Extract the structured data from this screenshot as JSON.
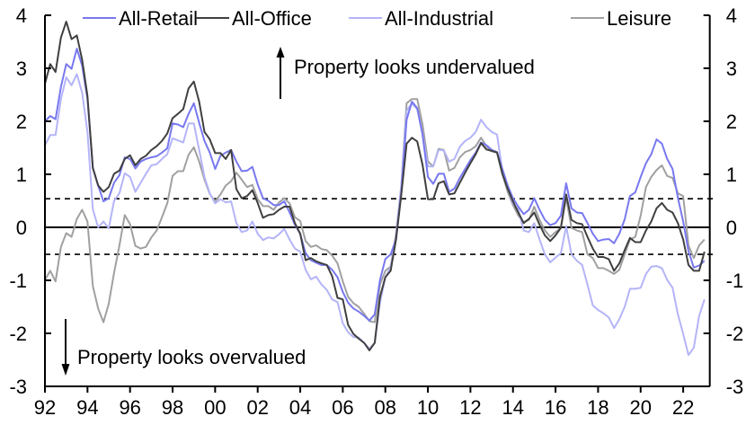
{
  "chart_data": {
    "type": "line",
    "title": "",
    "xlabel": "",
    "ylabel": "",
    "ylim": [
      -3,
      4
    ],
    "xlim": [
      1992,
      2023.25
    ],
    "grid": false,
    "legend_position": "top",
    "y_ticks": [
      "4",
      "3",
      "2",
      "1",
      "0",
      "-1",
      "-2",
      "-3"
    ],
    "y_tick_values": [
      4,
      3,
      2,
      1,
      0,
      -1,
      -2,
      -3
    ],
    "x_ticks": [
      "92",
      "94",
      "96",
      "98",
      "00",
      "02",
      "04",
      "06",
      "08",
      "10",
      "12",
      "14",
      "16",
      "18",
      "20",
      "22"
    ],
    "x_tick_values": [
      1992,
      1994,
      1996,
      1998,
      2000,
      2002,
      2004,
      2006,
      2008,
      2010,
      2012,
      2014,
      2016,
      2018,
      2020,
      2022
    ],
    "reference_lines": {
      "zero": 0,
      "upper_dashed": 0.54,
      "lower_dashed": -0.51
    },
    "annotations": {
      "undervalued": "Property looks undervalued",
      "overvalued": "Property looks overvalued"
    },
    "x": [
      1992,
      1992.25,
      1992.5,
      1992.75,
      1993,
      1993.25,
      1993.5,
      1993.75,
      1994,
      1994.25,
      1994.5,
      1994.75,
      1995,
      1995.25,
      1995.5,
      1995.75,
      1996,
      1996.25,
      1996.5,
      1996.75,
      1997,
      1997.25,
      1997.5,
      1997.75,
      1998,
      1998.25,
      1998.5,
      1998.75,
      1999,
      1999.25,
      1999.5,
      1999.75,
      2000,
      2000.25,
      2000.5,
      2000.75,
      2001,
      2001.25,
      2001.5,
      2001.75,
      2002,
      2002.25,
      2002.5,
      2002.75,
      2003,
      2003.25,
      2003.5,
      2003.75,
      2004,
      2004.25,
      2004.5,
      2004.75,
      2005,
      2005.25,
      2005.5,
      2005.75,
      2006,
      2006.25,
      2006.5,
      2006.75,
      2007,
      2007.25,
      2007.5,
      2007.75,
      2008,
      2008.25,
      2008.5,
      2008.75,
      2009,
      2009.25,
      2009.5,
      2009.75,
      2010,
      2010.25,
      2010.5,
      2010.75,
      2011,
      2011.25,
      2011.5,
      2011.75,
      2012,
      2012.25,
      2012.5,
      2012.75,
      2013,
      2013.25,
      2013.5,
      2013.75,
      2014,
      2014.25,
      2014.5,
      2014.75,
      2015,
      2015.25,
      2015.5,
      2015.75,
      2016,
      2016.25,
      2016.5,
      2016.75,
      2017,
      2017.25,
      2017.5,
      2017.75,
      2018,
      2018.25,
      2018.5,
      2018.75,
      2019,
      2019.25,
      2019.5,
      2019.75,
      2020,
      2020.25,
      2020.5,
      2020.75,
      2021,
      2021.25,
      2021.5,
      2021.75,
      2022,
      2022.25,
      2022.5,
      2022.75,
      2023
    ],
    "series": [
      {
        "name": "All-Retail",
        "color": "#7878f0",
        "values": [
          2.0,
          2.1,
          2.04,
          2.65,
          3.08,
          2.99,
          3.37,
          3.05,
          2.42,
          1.12,
          0.79,
          0.49,
          0.55,
          0.84,
          0.98,
          1.32,
          1.29,
          1.11,
          1.24,
          1.29,
          1.32,
          1.34,
          1.41,
          1.49,
          1.96,
          1.94,
          1.89,
          2.14,
          2.34,
          1.97,
          1.63,
          1.41,
          1.1,
          1.35,
          1.41,
          1.46,
          1.24,
          1.06,
          1.07,
          1.14,
          0.81,
          0.55,
          0.5,
          0.42,
          0.42,
          0.49,
          0.28,
          0.05,
          -0.12,
          -0.49,
          -0.62,
          -0.67,
          -0.71,
          -0.71,
          -0.8,
          -0.94,
          -1.22,
          -1.42,
          -1.53,
          -1.59,
          -1.67,
          -1.76,
          -1.64,
          -0.99,
          -0.6,
          -0.51,
          -0.23,
          0.67,
          2.03,
          2.37,
          2.25,
          1.75,
          0.95,
          0.82,
          1.01,
          1.01,
          0.67,
          0.73,
          0.93,
          1.1,
          1.27,
          1.41,
          1.6,
          1.55,
          1.46,
          1.42,
          1.1,
          0.79,
          0.55,
          0.39,
          0.25,
          0.33,
          0.55,
          0.33,
          0.14,
          0.04,
          0.08,
          0.22,
          0.83,
          0.36,
          0.28,
          0.27,
          0.08,
          -0.12,
          -0.26,
          -0.23,
          -0.22,
          -0.3,
          -0.12,
          0.15,
          0.59,
          0.66,
          0.95,
          1.21,
          1.38,
          1.66,
          1.58,
          1.29,
          1.1,
          0.56,
          0.11,
          -0.45,
          -0.76,
          -0.72,
          -0.63
        ]
      },
      {
        "name": "All-Office",
        "color": "#404040",
        "values": [
          2.71,
          3.08,
          2.93,
          3.58,
          3.88,
          3.55,
          3.62,
          3.16,
          2.48,
          1.12,
          0.79,
          0.67,
          0.76,
          1.01,
          1.07,
          1.29,
          1.36,
          1.17,
          1.29,
          1.35,
          1.46,
          1.53,
          1.63,
          1.77,
          2.06,
          2.14,
          2.23,
          2.62,
          2.75,
          2.37,
          1.8,
          1.66,
          1.4,
          1.4,
          1.29,
          1.46,
          0.72,
          0.55,
          0.59,
          0.7,
          0.46,
          0.18,
          0.23,
          0.25,
          0.33,
          0.39,
          0.39,
          0.08,
          -0.12,
          -0.62,
          -0.58,
          -0.64,
          -0.68,
          -0.71,
          -0.92,
          -1.33,
          -1.36,
          -1.84,
          -2.01,
          -2.1,
          -2.18,
          -2.32,
          -2.18,
          -1.31,
          -0.94,
          -0.82,
          -0.23,
          0.62,
          1.58,
          1.69,
          1.62,
          1.18,
          0.53,
          0.53,
          0.83,
          0.87,
          0.62,
          0.64,
          0.84,
          1.03,
          1.21,
          1.38,
          1.59,
          1.47,
          1.44,
          1.41,
          1.01,
          0.73,
          0.49,
          0.28,
          0.08,
          0.16,
          0.28,
          0.05,
          -0.15,
          -0.26,
          -0.15,
          -0.01,
          0.62,
          0.14,
          0.08,
          0.06,
          -0.18,
          -0.4,
          -0.56,
          -0.56,
          -0.6,
          -0.82,
          -0.68,
          -0.43,
          -0.2,
          -0.28,
          -0.28,
          -0.06,
          0.11,
          0.36,
          0.46,
          0.33,
          0.28,
          0.08,
          -0.23,
          -0.71,
          -0.82,
          -0.82,
          -0.46
        ]
      },
      {
        "name": "All-Industrial",
        "color": "#b4b4f8",
        "values": [
          1.55,
          1.74,
          1.74,
          2.42,
          2.83,
          2.68,
          2.89,
          2.54,
          1.8,
          0.34,
          0.0,
          0.11,
          -0.02,
          0.5,
          0.64,
          1.02,
          0.95,
          0.67,
          0.84,
          1.01,
          1.17,
          1.19,
          1.29,
          1.38,
          1.68,
          1.64,
          1.6,
          1.96,
          1.96,
          1.46,
          0.95,
          0.64,
          0.45,
          0.53,
          0.47,
          0.49,
          0.08,
          -0.09,
          -0.06,
          0.11,
          -0.12,
          -0.24,
          -0.19,
          -0.21,
          -0.13,
          -0.03,
          -0.23,
          -0.4,
          -0.46,
          -0.8,
          -0.98,
          -0.93,
          -1.08,
          -1.18,
          -1.36,
          -1.41,
          -1.81,
          -1.98,
          -2.07,
          -2.08,
          -2.18,
          -2.29,
          -2.18,
          -1.42,
          -0.94,
          -0.76,
          -0.18,
          0.79,
          2.2,
          2.34,
          2.23,
          1.77,
          1.15,
          1.15,
          1.46,
          1.45,
          1.24,
          1.29,
          1.52,
          1.63,
          1.69,
          1.8,
          2.03,
          1.89,
          1.8,
          1.75,
          1.07,
          0.73,
          0.45,
          0.33,
          -0.06,
          -0.09,
          0.08,
          -0.23,
          -0.51,
          -0.66,
          -0.57,
          -0.49,
          0.02,
          -0.51,
          -0.63,
          -0.71,
          -1.08,
          -1.47,
          -1.56,
          -1.62,
          -1.7,
          -1.9,
          -1.73,
          -1.5,
          -1.16,
          -1.16,
          -1.14,
          -0.88,
          -0.74,
          -0.73,
          -0.77,
          -0.99,
          -1.14,
          -1.64,
          -2.01,
          -2.41,
          -2.27,
          -1.67,
          -1.36
        ]
      },
      {
        "name": "Leisure",
        "color": "#a0a0a0",
        "values": [
          -0.99,
          -0.82,
          -1.02,
          -0.37,
          -0.11,
          -0.18,
          0.16,
          0.33,
          0.11,
          -1.11,
          -1.53,
          -1.79,
          -1.44,
          -0.86,
          -0.35,
          0.23,
          0.06,
          -0.35,
          -0.4,
          -0.37,
          -0.19,
          -0.06,
          0.19,
          0.45,
          0.97,
          1.06,
          1.06,
          1.37,
          1.51,
          1.24,
          0.9,
          0.63,
          0.49,
          0.62,
          0.79,
          0.87,
          1.03,
          0.9,
          0.76,
          0.8,
          0.53,
          0.4,
          0.4,
          0.33,
          0.47,
          0.55,
          0.45,
          0.19,
          0.12,
          -0.26,
          -0.37,
          -0.34,
          -0.41,
          -0.43,
          -0.53,
          -0.68,
          -1.02,
          -1.31,
          -1.43,
          -1.5,
          -1.63,
          -1.77,
          -1.79,
          -1.08,
          -0.82,
          -0.74,
          -0.12,
          0.79,
          2.34,
          2.42,
          2.42,
          1.94,
          1.24,
          1.15,
          1.48,
          1.46,
          1.07,
          1.12,
          1.32,
          1.42,
          1.46,
          1.53,
          1.69,
          1.53,
          1.44,
          1.41,
          1.01,
          0.67,
          0.42,
          0.22,
          0.1,
          0.14,
          0.39,
          0.14,
          -0.06,
          -0.18,
          -0.09,
          -0.01,
          0.56,
          -0.01,
          -0.06,
          -0.09,
          -0.51,
          -0.58,
          -0.77,
          -0.77,
          -0.82,
          -0.88,
          -0.8,
          -0.51,
          -0.23,
          -0.18,
          0.22,
          0.76,
          0.95,
          1.08,
          1.17,
          0.97,
          0.93,
          0.64,
          0.59,
          -0.34,
          -0.58,
          -0.34,
          -0.23
        ]
      }
    ]
  }
}
